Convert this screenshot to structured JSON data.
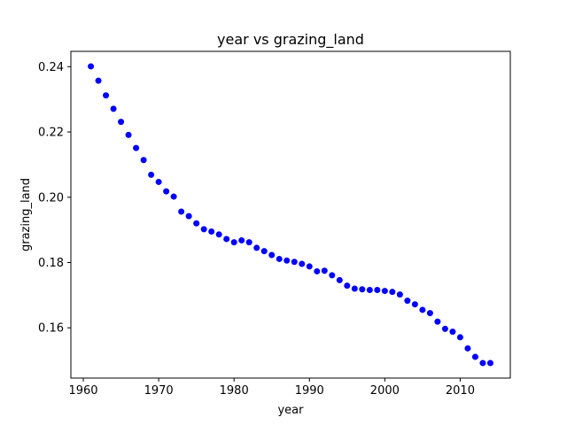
{
  "chart_data": {
    "type": "scatter",
    "title": "year vs grazing_land",
    "xlabel": "year",
    "ylabel": "grazing_land",
    "xlim": [
      1958.35,
      2016.65
    ],
    "ylim": [
      0.1446,
      0.2447
    ],
    "xticks": [
      1960,
      1970,
      1980,
      1990,
      2000,
      2010
    ],
    "xtick_labels": [
      "1960",
      "1970",
      "1980",
      "1990",
      "2000",
      "2010"
    ],
    "yticks": [
      0.16,
      0.18,
      0.2,
      0.22,
      0.24
    ],
    "ytick_labels": [
      "0.16",
      "0.18",
      "0.20",
      "0.22",
      "0.24"
    ],
    "grid": false,
    "legend": "none",
    "marker_color": "#0000ff",
    "points": [
      [
        1961,
        0.2401
      ],
      [
        1962,
        0.2357
      ],
      [
        1963,
        0.2312
      ],
      [
        1964,
        0.2271
      ],
      [
        1965,
        0.2231
      ],
      [
        1966,
        0.2191
      ],
      [
        1967,
        0.2151
      ],
      [
        1968,
        0.2114
      ],
      [
        1969,
        0.2069
      ],
      [
        1970,
        0.2047
      ],
      [
        1971,
        0.2018
      ],
      [
        1972,
        0.2002
      ],
      [
        1973,
        0.1956
      ],
      [
        1974,
        0.1942
      ],
      [
        1975,
        0.192
      ],
      [
        1976,
        0.1902
      ],
      [
        1977,
        0.1895
      ],
      [
        1978,
        0.1886
      ],
      [
        1979,
        0.1872
      ],
      [
        1980,
        0.1862
      ],
      [
        1981,
        0.1868
      ],
      [
        1982,
        0.1862
      ],
      [
        1983,
        0.1845
      ],
      [
        1984,
        0.1835
      ],
      [
        1985,
        0.1823
      ],
      [
        1986,
        0.1811
      ],
      [
        1987,
        0.1806
      ],
      [
        1988,
        0.1802
      ],
      [
        1989,
        0.1796
      ],
      [
        1990,
        0.1788
      ],
      [
        1991,
        0.1773
      ],
      [
        1992,
        0.1775
      ],
      [
        1993,
        0.1761
      ],
      [
        1994,
        0.1746
      ],
      [
        1995,
        0.1729
      ],
      [
        1996,
        0.172
      ],
      [
        1997,
        0.1718
      ],
      [
        1998,
        0.1716
      ],
      [
        1999,
        0.1716
      ],
      [
        2000,
        0.1713
      ],
      [
        2001,
        0.171
      ],
      [
        2002,
        0.1702
      ],
      [
        2003,
        0.1683
      ],
      [
        2004,
        0.1672
      ],
      [
        2005,
        0.1655
      ],
      [
        2006,
        0.1645
      ],
      [
        2007,
        0.1619
      ],
      [
        2008,
        0.1597
      ],
      [
        2009,
        0.1588
      ],
      [
        2010,
        0.1571
      ],
      [
        2011,
        0.1537
      ],
      [
        2012,
        0.1511
      ],
      [
        2013,
        0.1492
      ],
      [
        2014,
        0.1492
      ]
    ]
  }
}
